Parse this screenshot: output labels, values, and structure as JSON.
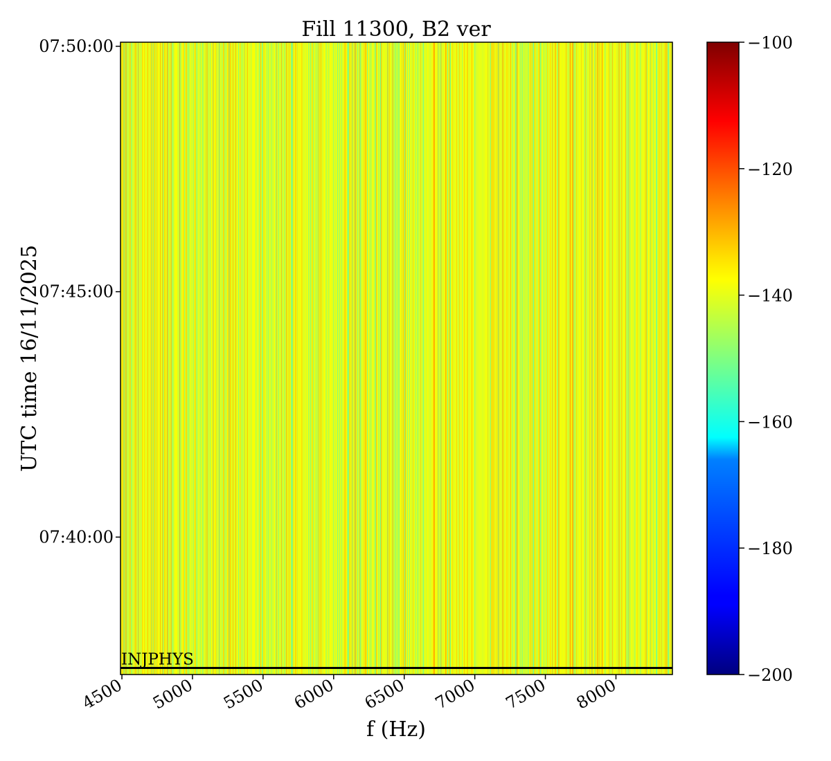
{
  "chart_data": {
    "type": "heatmap",
    "title": "Fill 11300, B2 ver",
    "xlabel": "f (Hz)",
    "ylabel": "UTC time 16/11/2025",
    "xlim": [
      4490,
      8400
    ],
    "x_ticks": [
      4500,
      5000,
      5500,
      6000,
      6500,
      7000,
      7500,
      8000
    ],
    "x_tick_labels": [
      "4500",
      "5000",
      "5500",
      "6000",
      "6500",
      "7000",
      "7500",
      "8000"
    ],
    "y_ticks": [
      "07:40:00",
      "07:45:00",
      "07:50:00"
    ],
    "ylim": [
      "07:37:12",
      "07:50:05"
    ],
    "colormap": "jet",
    "colorbar": {
      "range": [
        -200,
        -100
      ],
      "ticks": [
        -100,
        -120,
        -140,
        -160,
        -180,
        -200
      ],
      "tick_labels": [
        "−100",
        "−120",
        "−140",
        "−160",
        "−180",
        "−200"
      ]
    },
    "typical_value_range": [
      -152,
      -128
    ],
    "annotation": {
      "text": "INJPHYS",
      "time": "07:37:20",
      "line_color": "#000000"
    },
    "grid": false
  }
}
